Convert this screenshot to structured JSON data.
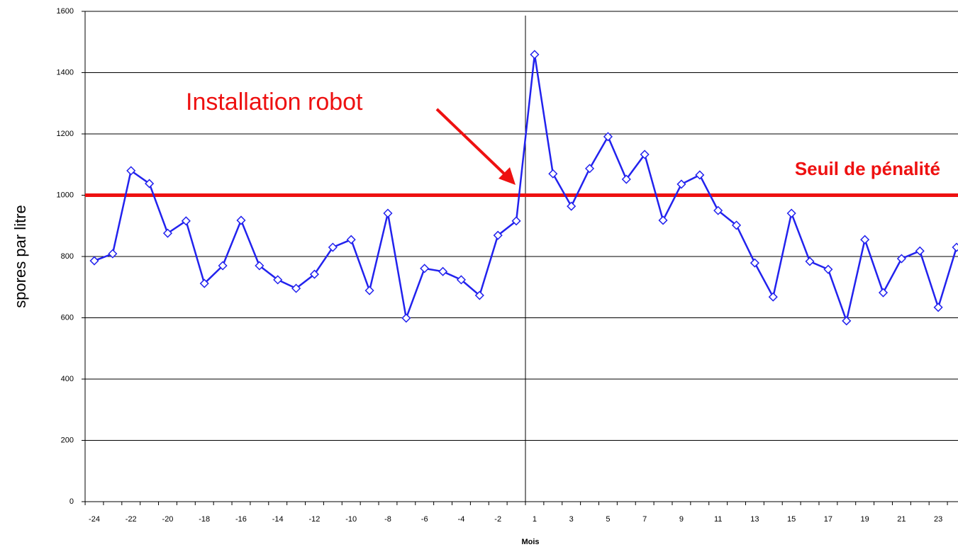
{
  "chart_data": {
    "type": "line",
    "y_label": "spores par litre",
    "x_label": "Mois",
    "categories": [
      "-24",
      null,
      "-22",
      null,
      "-20",
      null,
      "-18",
      null,
      "-16",
      null,
      "-14",
      null,
      "-12",
      null,
      "-10",
      null,
      "-8",
      null,
      "-6",
      null,
      "-4",
      null,
      "-2",
      null,
      "1",
      null,
      "3",
      null,
      "5",
      null,
      "7",
      null,
      "9",
      null,
      "11",
      null,
      "13",
      null,
      "15",
      null,
      "17",
      null,
      "19",
      null,
      "21",
      null,
      "23",
      null
    ],
    "series": [
      {
        "color": "#2222ee",
        "values": [
          786,
          809,
          1080,
          1038,
          876,
          916,
          712,
          770,
          918,
          770,
          724,
          696,
          742,
          830,
          855,
          689,
          941,
          599,
          761,
          751,
          724,
          673,
          869,
          916,
          1459,
          1070,
          964,
          1087,
          1191,
          1052,
          1133,
          918,
          1036,
          1066,
          950,
          902,
          779,
          668,
          941,
          784,
          758,
          590,
          855,
          682,
          793,
          818,
          634,
          830
        ]
      }
    ],
    "ylim": [
      0,
      1600
    ],
    "yticks": [
      0,
      200,
      400,
      600,
      800,
      1000,
      1200,
      1400,
      1600
    ],
    "grid": true,
    "threshold": {
      "value": 1000,
      "label": "Seuil de pénalité",
      "color": "#ee1111"
    },
    "annotation": {
      "text": "Installation robot",
      "color": "#ee1111"
    }
  }
}
